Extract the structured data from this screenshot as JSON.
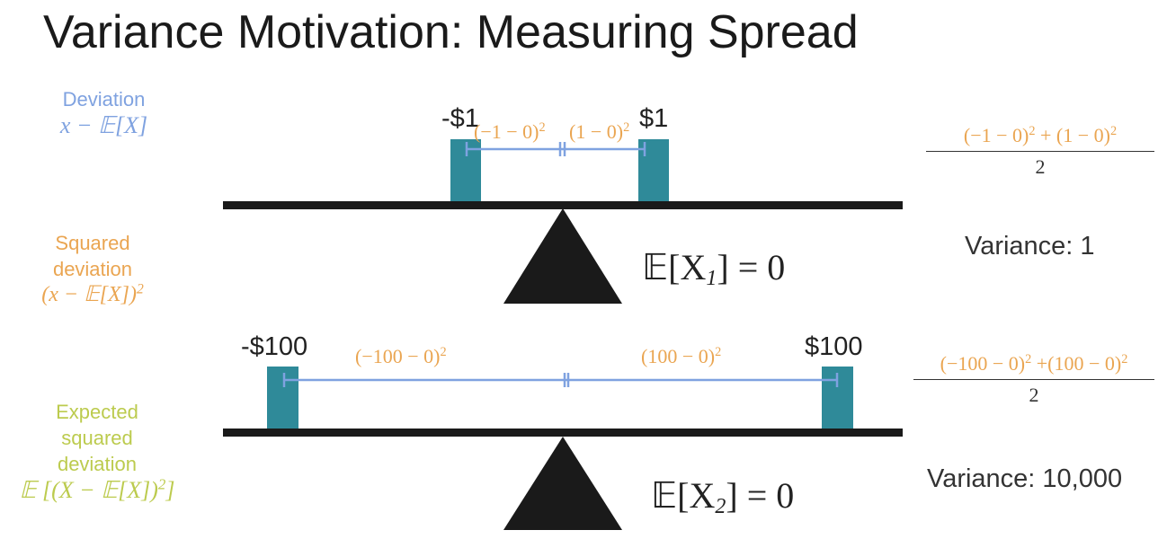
{
  "title": "Variance Motivation: Measuring Spread",
  "legend": {
    "deviation": {
      "label": "Deviation",
      "formula": "x − 𝔼[X]"
    },
    "squared_deviation": {
      "label_line1": "Squared",
      "label_line2": "deviation",
      "formula": "(x − 𝔼[X])",
      "formula_exp": "2"
    },
    "expected_squared_deviation": {
      "label_line1": "Expected",
      "label_line2": "squared",
      "label_line3": "deviation",
      "formula": "𝔼 [(X − 𝔼[X])",
      "formula_exp": "2",
      "formula_close": "]"
    }
  },
  "colors": {
    "deviation": "#7fa2e0",
    "squared": "#eaa551",
    "expected": "#bccb4e",
    "weight": "#2f8a99",
    "beam": "#1a1a1a"
  },
  "scenario1": {
    "left_price": "-$1",
    "right_price": "$1",
    "left_sq": "(−1 − 0)",
    "right_sq": "(1 − 0)",
    "exp": "2",
    "expectation": "𝔼[X",
    "expectation_sub": "1",
    "expectation_rest": "] = 0",
    "formula_num": "(−1 − 0)",
    "formula_num2": " + (1 − 0)",
    "formula_den": "2",
    "variance": "Variance: 1"
  },
  "scenario2": {
    "left_price": "-$100",
    "right_price": "$100",
    "left_sq": "(−100 − 0)",
    "right_sq": "(100 − 0)",
    "exp": "2",
    "expectation": "𝔼[X",
    "expectation_sub": "2",
    "expectation_rest": "] = 0",
    "formula_num": "(−100 − 0)",
    "formula_num2": " +(100 − 0)",
    "formula_den": "2",
    "variance": "Variance: 10,000"
  }
}
